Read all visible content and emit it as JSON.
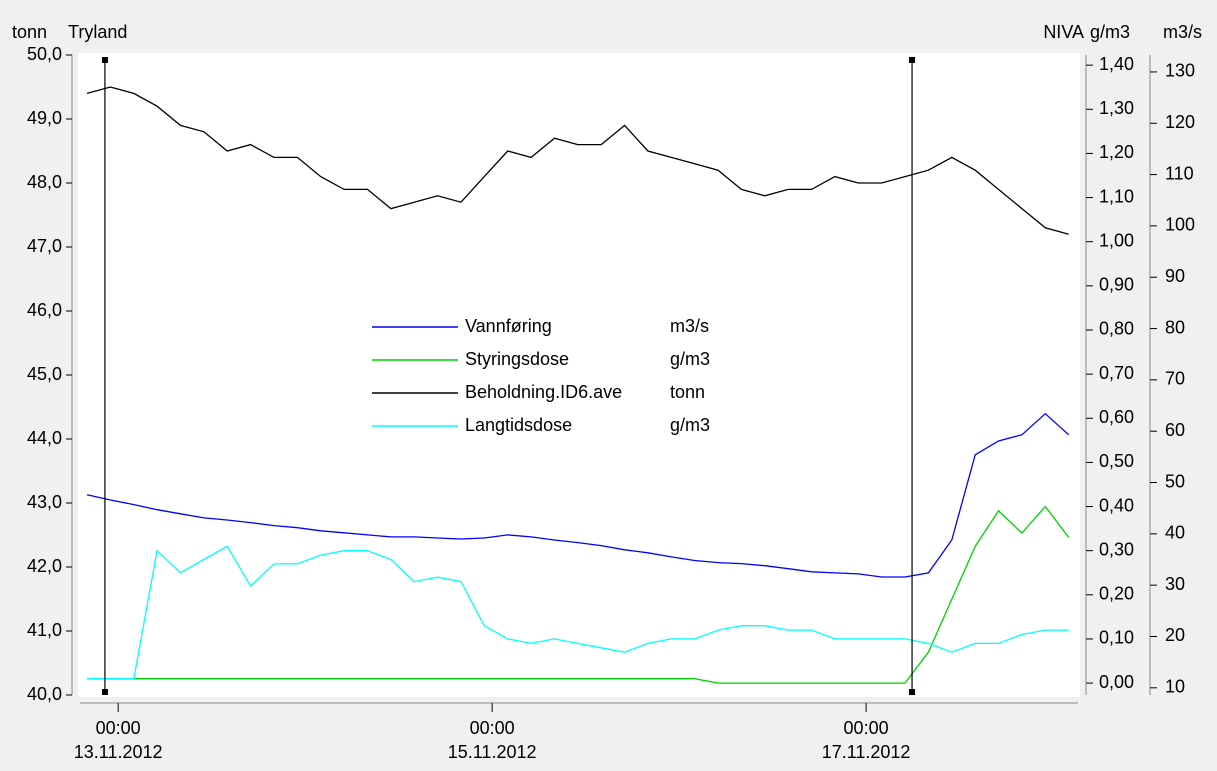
{
  "chart_data": {
    "type": "line",
    "title": "Tryland",
    "annotation": "NIVA",
    "y_label": "tonn",
    "y2_label": "g/m3",
    "y3_label": "m3/s",
    "xlim": [
      -4.9,
      123.2
    ],
    "xticks": [
      {
        "value": 0,
        "label": "00:00\n13.11.2012"
      },
      {
        "value": 48,
        "label": "00:00\n15.11.2012"
      },
      {
        "value": 96,
        "label": "00:00\n17.11.2012"
      }
    ],
    "ylim": [
      40.0,
      50.0
    ],
    "yticks": [
      {
        "value": 40,
        "label": "40,0"
      },
      {
        "value": 41,
        "label": "41,0"
      },
      {
        "value": 42,
        "label": "42,0"
      },
      {
        "value": 43,
        "label": "43,0"
      },
      {
        "value": 44,
        "label": "44,0"
      },
      {
        "value": 45,
        "label": "45,0"
      },
      {
        "value": 46,
        "label": "46,0"
      },
      {
        "value": 47,
        "label": "47,0"
      },
      {
        "value": 48,
        "label": "48,0"
      },
      {
        "value": 49,
        "label": "49,0"
      },
      {
        "value": 50,
        "label": "50,0"
      }
    ],
    "y2lim": [
      -0.027,
      1.423
    ],
    "y2ticks": [
      {
        "value": 0,
        "label": "0,00"
      },
      {
        "value": 0.1,
        "label": "0,10"
      },
      {
        "value": 0.2,
        "label": "0,20"
      },
      {
        "value": 0.3,
        "label": "0,30"
      },
      {
        "value": 0.4,
        "label": "0,40"
      },
      {
        "value": 0.5,
        "label": "0,50"
      },
      {
        "value": 0.6,
        "label": "0,60"
      },
      {
        "value": 0.7,
        "label": "0,70"
      },
      {
        "value": 0.8,
        "label": "0,80"
      },
      {
        "value": 0.9,
        "label": "0,90"
      },
      {
        "value": 1.0,
        "label": "1,00"
      },
      {
        "value": 1.1,
        "label": "1,10"
      },
      {
        "value": 1.2,
        "label": "1,20"
      },
      {
        "value": 1.3,
        "label": "1,30"
      },
      {
        "value": 1.4,
        "label": "1,40"
      }
    ],
    "y3lim": [
      8.6,
      133.3
    ],
    "y3ticks": [
      10,
      20,
      30,
      40,
      50,
      60,
      70,
      80,
      90,
      100,
      110,
      120,
      130
    ],
    "cursors": [
      -1.7,
      101.9
    ],
    "x": [
      -4,
      -1,
      2,
      5,
      8,
      11,
      14,
      17,
      20,
      23,
      26,
      29,
      32,
      35,
      38,
      41,
      44,
      47,
      50,
      53,
      56,
      59,
      62,
      65,
      68,
      71,
      74,
      77,
      80,
      83,
      86,
      89,
      92,
      95,
      98,
      101,
      104,
      107,
      110,
      113,
      116,
      119,
      122
    ],
    "series": [
      {
        "name": "Vannføring",
        "unit": "m3/s",
        "color": "#0000ff",
        "axis": "y3",
        "values": [
          47.6,
          46.6,
          45.7,
          44.7,
          43.9,
          43.1,
          42.7,
          42.2,
          41.6,
          41.2,
          40.6,
          40.2,
          39.8,
          39.4,
          39.4,
          39.2,
          39.0,
          39.2,
          39.8,
          39.4,
          38.8,
          38.3,
          37.7,
          36.9,
          36.3,
          35.5,
          34.8,
          34.4,
          34.2,
          33.8,
          33.2,
          32.6,
          32.4,
          32.2,
          31.6,
          31.6,
          32.4,
          38.8,
          55.4,
          58.1,
          59.3,
          63.4,
          59.3
        ]
      },
      {
        "name": "Styringsdose",
        "unit": "g/m3",
        "color": "#00d000",
        "axis": "y2",
        "values": [
          0.01,
          0.01,
          0.01,
          0.01,
          0.01,
          0.01,
          0.01,
          0.01,
          0.01,
          0.01,
          0.01,
          0.01,
          0.01,
          0.01,
          0.01,
          0.01,
          0.01,
          0.01,
          0.01,
          0.01,
          0.01,
          0.01,
          0.01,
          0.01,
          0.01,
          0.01,
          0.01,
          0.0,
          0.0,
          0.0,
          0.0,
          0.0,
          0.0,
          0.0,
          0.0,
          0.0,
          0.07,
          0.19,
          0.31,
          0.39,
          0.34,
          0.4,
          0.33
        ]
      },
      {
        "name": "Beholdning.ID6.ave",
        "unit": "tonn",
        "color": "#000000",
        "axis": "y",
        "values": [
          49.4,
          49.5,
          49.4,
          49.2,
          48.9,
          48.8,
          48.5,
          48.6,
          48.4,
          48.4,
          48.1,
          47.9,
          47.9,
          47.6,
          47.7,
          47.8,
          47.7,
          48.1,
          48.5,
          48.4,
          48.7,
          48.6,
          48.6,
          48.9,
          48.5,
          48.4,
          48.3,
          48.2,
          47.9,
          47.8,
          47.9,
          47.9,
          48.1,
          48.0,
          48.0,
          48.1,
          48.2,
          48.4,
          48.2,
          47.9,
          47.6,
          47.3,
          47.2
        ]
      },
      {
        "name": "Langtidsdose",
        "unit": "g/m3",
        "color": "#00ffff",
        "axis": "y2",
        "values": [
          0.01,
          0.01,
          0.01,
          0.3,
          0.25,
          0.28,
          0.31,
          0.22,
          0.27,
          0.27,
          0.29,
          0.3,
          0.3,
          0.28,
          0.23,
          0.24,
          0.23,
          0.13,
          0.1,
          0.09,
          0.1,
          0.09,
          0.08,
          0.07,
          0.09,
          0.1,
          0.1,
          0.12,
          0.13,
          0.13,
          0.12,
          0.12,
          0.1,
          0.1,
          0.1,
          0.1,
          0.09,
          0.07,
          0.09,
          0.09,
          0.11,
          0.12,
          0.12
        ]
      }
    ]
  }
}
